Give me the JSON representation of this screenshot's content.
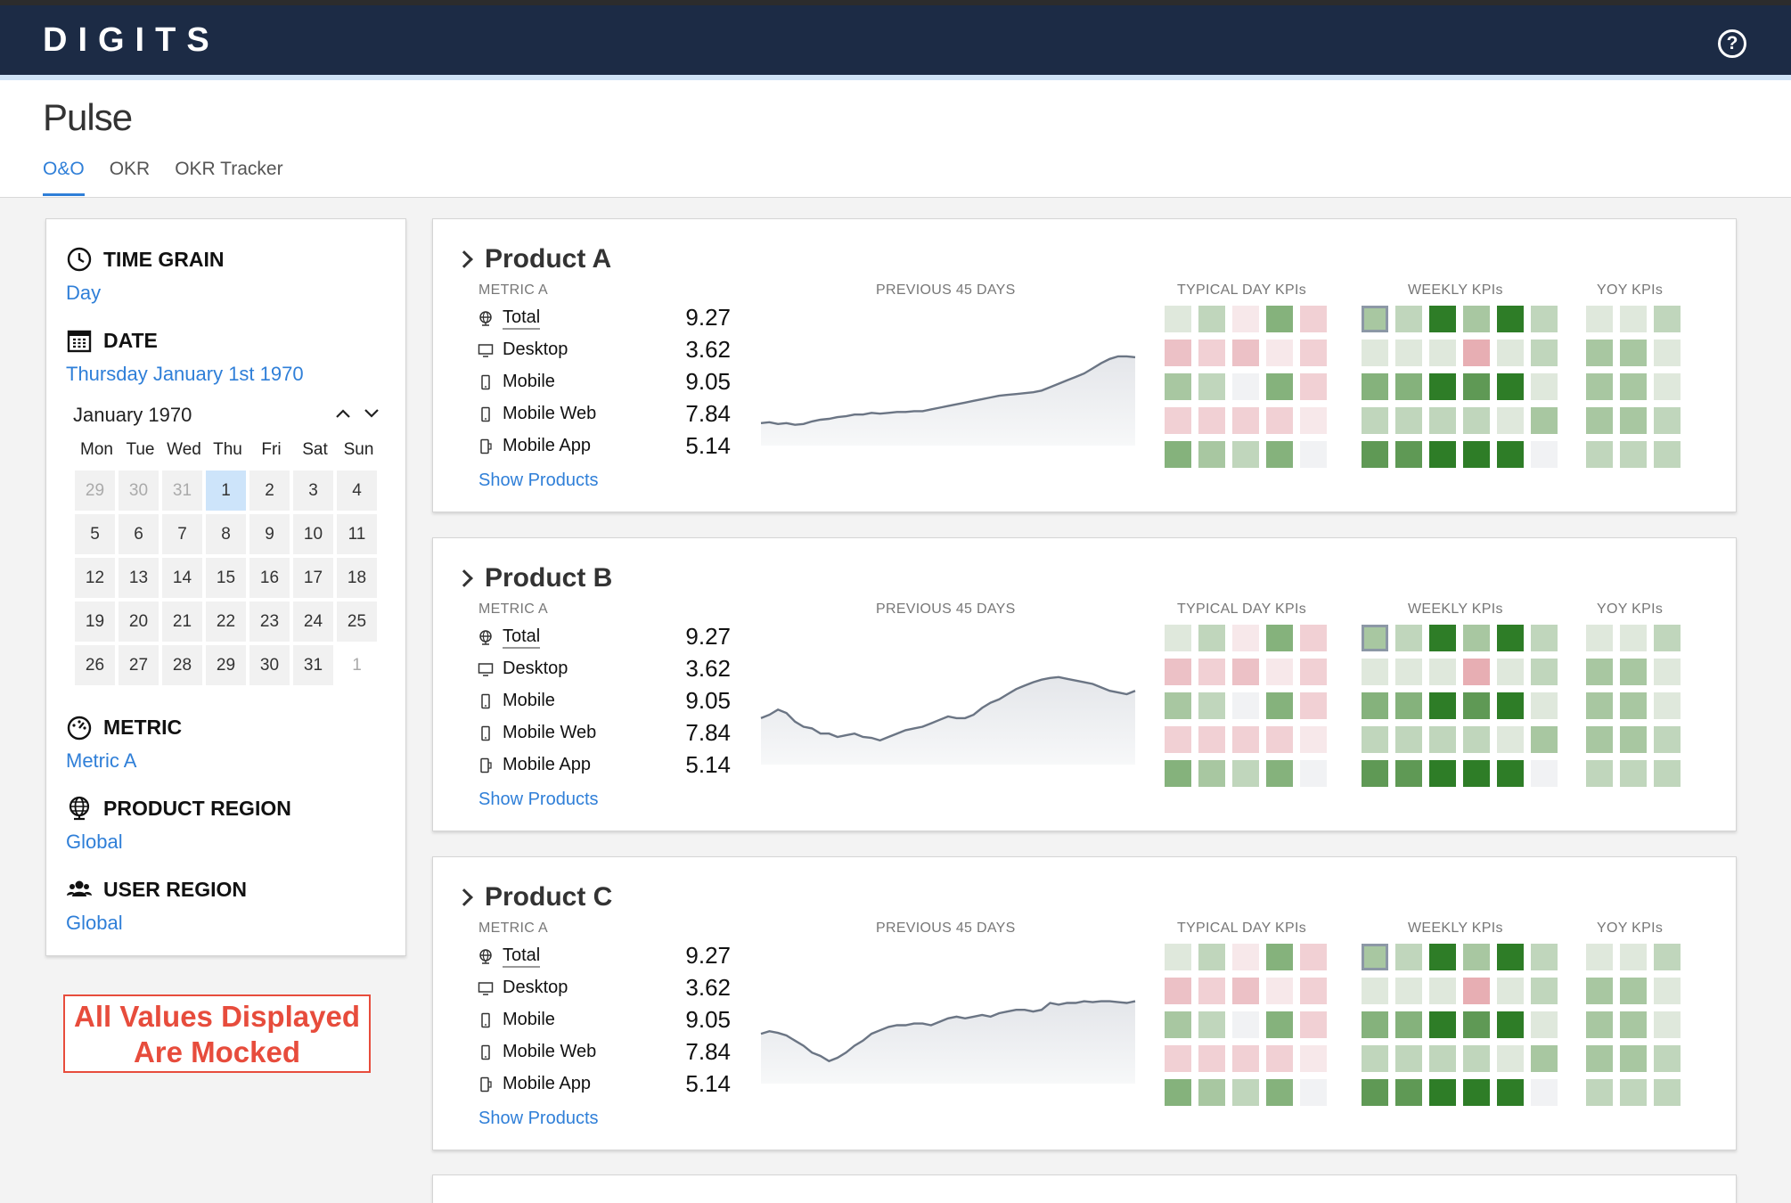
{
  "app": {
    "logo": "DIGITS"
  },
  "page": {
    "title": "Pulse"
  },
  "tabs": [
    {
      "label": "O&O",
      "active": true
    },
    {
      "label": "OKR",
      "active": false
    },
    {
      "label": "OKR Tracker",
      "active": false
    }
  ],
  "sidebar": {
    "time_grain": {
      "heading": "TIME GRAIN",
      "value": "Day",
      "icon": "clock-icon"
    },
    "date": {
      "heading": "DATE",
      "value": "Thursday January 1st 1970",
      "icon": "calendar-icon"
    },
    "calendar": {
      "month_label": "January 1970",
      "day_names": [
        "Mon",
        "Tue",
        "Wed",
        "Thu",
        "Fri",
        "Sat",
        "Sun"
      ],
      "weeks": [
        [
          "29",
          "30",
          "31",
          "1",
          "2",
          "3",
          "4"
        ],
        [
          "5",
          "6",
          "7",
          "8",
          "9",
          "10",
          "11"
        ],
        [
          "12",
          "13",
          "14",
          "15",
          "16",
          "17",
          "18"
        ],
        [
          "19",
          "20",
          "21",
          "22",
          "23",
          "24",
          "25"
        ],
        [
          "26",
          "27",
          "28",
          "29",
          "30",
          "31",
          "1"
        ]
      ],
      "selected": "1"
    },
    "metric": {
      "heading": "METRIC",
      "value": "Metric A",
      "icon": "gauge-icon"
    },
    "product_region": {
      "heading": "PRODUCT REGION",
      "value": "Global",
      "icon": "globe-icon"
    },
    "user_region": {
      "heading": "USER REGION",
      "value": "Global",
      "icon": "users-icon"
    }
  },
  "mock_note": {
    "line1": "All Values Displayed",
    "line2": "Are Mocked"
  },
  "column_labels": {
    "metric": "METRIC A",
    "sparkline": "PREVIOUS 45 DAYS",
    "typical": "TYPICAL DAY KPIs",
    "weekly": "WEEKLY KPIs",
    "yoy": "YOY KPIs"
  },
  "show_products_label": "Show Products",
  "colors": {
    "g1": "#dfe8dc",
    "g2": "#c0d6bc",
    "g3": "#a8c7a1",
    "g4": "#85b27c",
    "g5": "#5f9955",
    "g6": "#2e7d27",
    "r1": "#f7e8ea",
    "r2": "#f1d0d4",
    "r3": "#ecc1c6",
    "r4": "#e7aeb3",
    "n": "#f1f2f4"
  },
  "products": [
    {
      "name": "Product A",
      "rows": [
        {
          "label": "Total",
          "value": "9.27",
          "icon": "globe-icon"
        },
        {
          "label": "Desktop",
          "value": "3.62",
          "icon": "desktop-icon"
        },
        {
          "label": "Mobile",
          "value": "9.05",
          "icon": "mobile-icon"
        },
        {
          "label": "Mobile Web",
          "value": "7.84",
          "icon": "mobile-icon"
        },
        {
          "label": "Mobile App",
          "value": "5.14",
          "icon": "mobile-app-icon"
        }
      ],
      "sparkline": [
        0.2,
        0.21,
        0.19,
        0.2,
        0.18,
        0.19,
        0.22,
        0.24,
        0.25,
        0.27,
        0.28,
        0.3,
        0.3,
        0.32,
        0.31,
        0.32,
        0.33,
        0.33,
        0.34,
        0.34,
        0.36,
        0.38,
        0.4,
        0.42,
        0.44,
        0.46,
        0.48,
        0.5,
        0.52,
        0.53,
        0.54,
        0.55,
        0.56,
        0.58,
        0.62,
        0.66,
        0.7,
        0.74,
        0.78,
        0.84,
        0.9,
        0.95,
        0.98,
        0.98,
        0.97
      ],
      "typical": [
        [
          "g1",
          "g2",
          "r1",
          "g4",
          "r2"
        ],
        [
          "r3",
          "r2",
          "r3",
          "r1",
          "r2"
        ],
        [
          "g3",
          "g2",
          "n",
          "g4",
          "r2"
        ],
        [
          "r2",
          "r2",
          "r2",
          "r2",
          "r1"
        ],
        [
          "g4",
          "g3",
          "g2",
          "g4",
          "n"
        ]
      ],
      "weekly": [
        [
          "g3",
          "g2",
          "g6",
          "g3",
          "g6",
          "g2"
        ],
        [
          "g1",
          "g1",
          "g1",
          "r4",
          "g1",
          "g2"
        ],
        [
          "g4",
          "g4",
          "g6",
          "g5",
          "g6",
          "g1"
        ],
        [
          "g2",
          "g2",
          "g2",
          "g2",
          "g1",
          "g3"
        ],
        [
          "g5",
          "g5",
          "g6",
          "g6",
          "g6",
          "n"
        ]
      ],
      "yoy": [
        [
          "g1",
          "g1",
          "g2"
        ],
        [
          "g3",
          "g3",
          "g1"
        ],
        [
          "g3",
          "g3",
          "g1"
        ],
        [
          "g3",
          "g3",
          "g2"
        ],
        [
          "g2",
          "g2",
          "g2"
        ]
      ]
    },
    {
      "name": "Product B",
      "rows": [
        {
          "label": "Total",
          "value": "9.27",
          "icon": "globe-icon"
        },
        {
          "label": "Desktop",
          "value": "3.62",
          "icon": "desktop-icon"
        },
        {
          "label": "Mobile",
          "value": "9.05",
          "icon": "mobile-icon"
        },
        {
          "label": "Mobile Web",
          "value": "7.84",
          "icon": "mobile-icon"
        },
        {
          "label": "Mobile App",
          "value": "5.14",
          "icon": "mobile-app-icon"
        }
      ],
      "sparkline": [
        0.48,
        0.52,
        0.58,
        0.54,
        0.44,
        0.38,
        0.36,
        0.3,
        0.3,
        0.26,
        0.28,
        0.3,
        0.26,
        0.25,
        0.22,
        0.26,
        0.3,
        0.34,
        0.36,
        0.38,
        0.42,
        0.46,
        0.5,
        0.48,
        0.48,
        0.52,
        0.6,
        0.66,
        0.7,
        0.76,
        0.82,
        0.86,
        0.9,
        0.93,
        0.95,
        0.96,
        0.94,
        0.92,
        0.9,
        0.88,
        0.84,
        0.8,
        0.78,
        0.76,
        0.8
      ],
      "typical": [
        [
          "g1",
          "g2",
          "r1",
          "g4",
          "r2"
        ],
        [
          "r3",
          "r2",
          "r3",
          "r1",
          "r2"
        ],
        [
          "g3",
          "g2",
          "n",
          "g4",
          "r2"
        ],
        [
          "r2",
          "r2",
          "r2",
          "r2",
          "r1"
        ],
        [
          "g4",
          "g3",
          "g2",
          "g4",
          "n"
        ]
      ],
      "weekly": [
        [
          "g3",
          "g2",
          "g6",
          "g3",
          "g6",
          "g2"
        ],
        [
          "g1",
          "g1",
          "g1",
          "r4",
          "g1",
          "g2"
        ],
        [
          "g4",
          "g4",
          "g6",
          "g5",
          "g6",
          "g1"
        ],
        [
          "g2",
          "g2",
          "g2",
          "g2",
          "g1",
          "g3"
        ],
        [
          "g5",
          "g5",
          "g6",
          "g6",
          "g6",
          "n"
        ]
      ],
      "yoy": [
        [
          "g1",
          "g1",
          "g2"
        ],
        [
          "g3",
          "g3",
          "g1"
        ],
        [
          "g3",
          "g3",
          "g1"
        ],
        [
          "g3",
          "g3",
          "g2"
        ],
        [
          "g2",
          "g2",
          "g2"
        ]
      ]
    },
    {
      "name": "Product C",
      "rows": [
        {
          "label": "Total",
          "value": "9.27",
          "icon": "globe-icon"
        },
        {
          "label": "Desktop",
          "value": "3.62",
          "icon": "desktop-icon"
        },
        {
          "label": "Mobile",
          "value": "9.05",
          "icon": "mobile-icon"
        },
        {
          "label": "Mobile Web",
          "value": "7.84",
          "icon": "mobile-icon"
        },
        {
          "label": "Mobile App",
          "value": "5.14",
          "icon": "mobile-app-icon"
        }
      ],
      "sparkline": [
        0.52,
        0.55,
        0.53,
        0.5,
        0.44,
        0.38,
        0.3,
        0.26,
        0.2,
        0.24,
        0.3,
        0.38,
        0.44,
        0.52,
        0.56,
        0.6,
        0.62,
        0.62,
        0.64,
        0.64,
        0.62,
        0.66,
        0.7,
        0.72,
        0.7,
        0.72,
        0.74,
        0.72,
        0.76,
        0.78,
        0.8,
        0.8,
        0.78,
        0.8,
        0.88,
        0.86,
        0.88,
        0.88,
        0.9,
        0.89,
        0.9,
        0.9,
        0.89,
        0.88,
        0.9
      ],
      "typical": [
        [
          "g1",
          "g2",
          "r1",
          "g4",
          "r2"
        ],
        [
          "r3",
          "r2",
          "r3",
          "r1",
          "r2"
        ],
        [
          "g3",
          "g2",
          "n",
          "g4",
          "r2"
        ],
        [
          "r2",
          "r2",
          "r2",
          "r2",
          "r1"
        ],
        [
          "g4",
          "g3",
          "g2",
          "g4",
          "n"
        ]
      ],
      "weekly": [
        [
          "g3",
          "g2",
          "g6",
          "g3",
          "g6",
          "g2"
        ],
        [
          "g1",
          "g1",
          "g1",
          "r4",
          "g1",
          "g2"
        ],
        [
          "g4",
          "g4",
          "g6",
          "g5",
          "g6",
          "g1"
        ],
        [
          "g2",
          "g2",
          "g2",
          "g2",
          "g1",
          "g3"
        ],
        [
          "g5",
          "g5",
          "g6",
          "g6",
          "g6",
          "n"
        ]
      ],
      "yoy": [
        [
          "g1",
          "g1",
          "g2"
        ],
        [
          "g3",
          "g3",
          "g1"
        ],
        [
          "g3",
          "g3",
          "g1"
        ],
        [
          "g3",
          "g3",
          "g2"
        ],
        [
          "g2",
          "g2",
          "g2"
        ]
      ]
    }
  ]
}
